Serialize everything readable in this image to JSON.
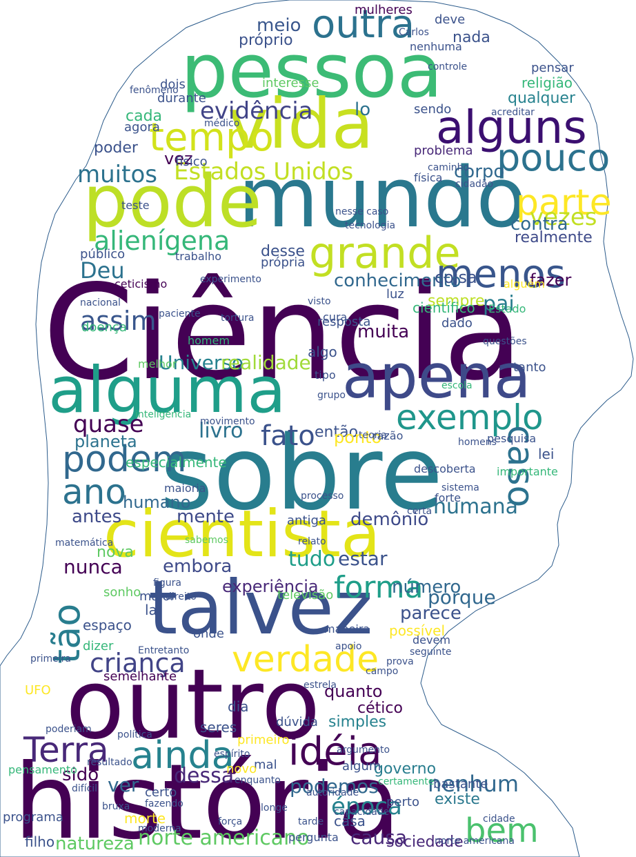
{
  "words": [
    {
      "id": "ciencia",
      "text": "Ciência",
      "color": "#440154"
    },
    {
      "id": "sobre",
      "text": "sobre",
      "color": "#287d8e"
    },
    {
      "id": "historia",
      "text": "história",
      "color": "#440154"
    },
    {
      "id": "outro",
      "text": "outro",
      "color": "#440154"
    },
    {
      "id": "pessoa",
      "text": "pessoa",
      "color": "#3cbb75"
    },
    {
      "id": "mundo",
      "text": "mundo",
      "color": "#2a788e"
    },
    {
      "id": "pode",
      "text": "pode",
      "color": "#bddf26"
    },
    {
      "id": "vida",
      "text": "vida",
      "color": "#c8e020"
    },
    {
      "id": "talvez",
      "text": "talvez",
      "color": "#3b528b"
    },
    {
      "id": "cientista",
      "text": "cientista",
      "color": "#e3e418"
    },
    {
      "id": "alguma",
      "text": "alguma",
      "color": "#1f9e89"
    },
    {
      "id": "apena",
      "text": "apena",
      "color": "#3e4a89"
    },
    {
      "id": "exemplo",
      "text": "exemplo",
      "color": "#1f968b"
    },
    {
      "id": "alguns",
      "text": "alguns",
      "color": "#3b0f70"
    },
    {
      "id": "tempo",
      "text": "tempo",
      "color": "#d2e21b"
    },
    {
      "id": "grande",
      "text": "grande",
      "color": "#c2df23"
    },
    {
      "id": "menos",
      "text": "menos",
      "color": "#39568c"
    },
    {
      "id": "pouco",
      "text": "pouco",
      "color": "#2c728e"
    },
    {
      "id": "outra",
      "text": "outra",
      "color": "#2c728e"
    },
    {
      "id": "parte",
      "text": "parte",
      "color": "#fde725"
    },
    {
      "id": "vezes",
      "text": "vezes",
      "color": "#c2df23"
    },
    {
      "id": "estados-unidos",
      "text": "Estados Unidos",
      "color": "#c2df23"
    },
    {
      "id": "muitos",
      "text": "muitos",
      "color": "#2c728e"
    },
    {
      "id": "evidencia",
      "text": "evidência",
      "color": "#414487"
    },
    {
      "id": "alienigena",
      "text": "alienígena",
      "color": "#35b779"
    },
    {
      "id": "verdade",
      "text": "verdade",
      "color": "#fde725"
    },
    {
      "id": "podem",
      "text": "podem",
      "color": "#31688e"
    },
    {
      "id": "ano",
      "text": "ano",
      "color": "#2c728e"
    },
    {
      "id": "fato",
      "text": "fato",
      "color": "#3b528b"
    },
    {
      "id": "caso",
      "text": "caso",
      "color": "#2c728e"
    },
    {
      "id": "forma",
      "text": "forma",
      "color": "#1f9e89"
    },
    {
      "id": "crianca",
      "text": "criança",
      "color": "#414487"
    },
    {
      "id": "terra",
      "text": "Terra",
      "color": "#482878"
    },
    {
      "id": "ainda",
      "text": "ainda",
      "color": "#26828e"
    },
    {
      "id": "ideia",
      "text": "idéia",
      "color": "#440154"
    },
    {
      "id": "bem",
      "text": "bem",
      "color": "#4ac16d"
    },
    {
      "id": "tao",
      "text": "tão",
      "color": "#287d8e"
    },
    {
      "id": "deu",
      "text": "Deu",
      "color": "#2c728e"
    },
    {
      "id": "assim",
      "text": "assim",
      "color": "#39568c"
    },
    {
      "id": "quase",
      "text": "quase",
      "color": "#440154"
    },
    {
      "id": "conhecimento",
      "text": "conhecimento",
      "color": "#31688e"
    },
    {
      "id": "humana",
      "text": "humana",
      "color": "#2c728e"
    },
    {
      "id": "nenhum",
      "text": "nenhum",
      "color": "#31688e"
    },
    {
      "id": "podemos",
      "text": "podemos",
      "color": "#31688e"
    },
    {
      "id": "epoca",
      "text": "época",
      "color": "#26828e"
    },
    {
      "id": "norte-americano",
      "text": "norte americano",
      "color": "#5ec962"
    },
    {
      "id": "natureza",
      "text": "natureza",
      "color": "#5ec962"
    },
    {
      "id": "sido",
      "text": "sido",
      "color": "#440154"
    },
    {
      "id": "dessa",
      "text": "dessa",
      "color": "#482878"
    },
    {
      "id": "ver",
      "text": "ver",
      "color": "#31688e"
    },
    {
      "id": "causa",
      "text": "causa",
      "color": "#482878"
    },
    {
      "id": "existe",
      "text": "existe",
      "color": "#2a788e"
    },
    {
      "id": "sociedade",
      "text": "sociedade",
      "color": "#482878"
    },
    {
      "id": "livro",
      "text": "livro",
      "color": "#2c728e"
    },
    {
      "id": "universo",
      "text": "Universo",
      "color": "#26828e"
    },
    {
      "id": "realidade",
      "text": "realidade",
      "color": "#a0da39"
    },
    {
      "id": "planeta",
      "text": "planeta",
      "color": "#2c728e"
    },
    {
      "id": "nunca",
      "text": "nunca",
      "color": "#440154"
    },
    {
      "id": "embora",
      "text": "embora",
      "color": "#3e4a89"
    },
    {
      "id": "tudo",
      "text": "tudo",
      "color": "#1f9e89"
    },
    {
      "id": "numero",
      "text": "número",
      "color": "#31688e"
    },
    {
      "id": "porque",
      "text": "porque",
      "color": "#31688e"
    },
    {
      "id": "parece",
      "text": "parece",
      "color": "#3b528b"
    },
    {
      "id": "experiencia",
      "text": "experiência",
      "color": "#482878"
    },
    {
      "id": "corpo",
      "text": "corpo",
      "color": "#31688e"
    },
    {
      "id": "contra",
      "text": "contra",
      "color": "#31688e"
    },
    {
      "id": "realmente",
      "text": "realmente",
      "color": "#3e4a89"
    },
    {
      "id": "coisa",
      "text": "coisa",
      "color": "#3b528b"
    },
    {
      "id": "fazer",
      "text": "fazer",
      "color": "#440154"
    },
    {
      "id": "pai",
      "text": "pai",
      "color": "#287d8e"
    },
    {
      "id": "sempre",
      "text": "sempre",
      "color": "#bddf26"
    },
    {
      "id": "muita",
      "text": "muita",
      "color": "#440154"
    },
    {
      "id": "estar",
      "text": "estar",
      "color": "#3b528b"
    },
    {
      "id": "demonio",
      "text": "demônio",
      "color": "#3e4a89"
    },
    {
      "id": "mente",
      "text": "mente",
      "color": "#3e4a89"
    },
    {
      "id": "humano",
      "text": "humano",
      "color": "#31688e"
    },
    {
      "id": "antes",
      "text": "antes",
      "color": "#3e4a89"
    },
    {
      "id": "nova",
      "text": "nova",
      "color": "#5ec962"
    },
    {
      "id": "entao",
      "text": "então",
      "color": "#3b528b"
    },
    {
      "id": "quanto",
      "text": "quanto",
      "color": "#440154"
    },
    {
      "id": "cetico",
      "text": "cético",
      "color": "#440154"
    },
    {
      "id": "simples",
      "text": "simples",
      "color": "#26828e"
    },
    {
      "id": "governo",
      "text": "governo",
      "color": "#287d8e"
    },
    {
      "id": "meio",
      "text": "meio",
      "color": "#39568c"
    },
    {
      "id": "mulheres",
      "text": "mulheres",
      "color": "#440154"
    },
    {
      "id": "cada",
      "text": "cada",
      "color": "#35b779"
    },
    {
      "id": "poder",
      "text": "poder",
      "color": "#3b528b"
    },
    {
      "id": "vez",
      "text": "vez",
      "color": "#440154"
    },
    {
      "id": "qualquer",
      "text": "qualquer",
      "color": "#26828e"
    },
    {
      "id": "lo",
      "text": "lo",
      "color": "#2c728e"
    },
    {
      "id": "proprio",
      "text": "próprio",
      "color": "#3b528b"
    },
    {
      "id": "nada",
      "text": "nada",
      "color": "#3b528b"
    },
    {
      "id": "deve",
      "text": "deve",
      "color": "#3b528b"
    },
    {
      "id": "nenhuma",
      "text": "nenhuma",
      "color": "#3b528b"
    },
    {
      "id": "religiao",
      "text": "religião",
      "color": "#35b779"
    },
    {
      "id": "pensar",
      "text": "pensar",
      "color": "#3b528b"
    },
    {
      "id": "interesse",
      "text": "interesse",
      "color": "#5ec962"
    },
    {
      "id": "dois",
      "text": "dois",
      "color": "#3b528b"
    },
    {
      "id": "durante",
      "text": "durante",
      "color": "#3b528b"
    },
    {
      "id": "agora",
      "text": "agora",
      "color": "#3b528b"
    },
    {
      "id": "fisica",
      "text": "física",
      "color": "#3b528b"
    },
    {
      "id": "fisico",
      "text": "físico",
      "color": "#3b528b"
    },
    {
      "id": "problema",
      "text": "problema",
      "color": "#482878"
    },
    {
      "id": "sendo",
      "text": "sendo",
      "color": "#3b528b"
    },
    {
      "id": "teste",
      "text": "teste",
      "color": "#3b528b"
    },
    {
      "id": "cientifico",
      "text": "científico",
      "color": "#35b779"
    },
    {
      "id": "dado",
      "text": "dado",
      "color": "#3b528b"
    },
    {
      "id": "doenca",
      "text": "doença",
      "color": "#35b779"
    },
    {
      "id": "desse",
      "text": "desse",
      "color": "#3b528b"
    },
    {
      "id": "propria",
      "text": "própria",
      "color": "#3b528b"
    },
    {
      "id": "publico",
      "text": "público",
      "color": "#3b528b"
    },
    {
      "id": "ceticismo",
      "text": "ceticismo",
      "color": "#440154"
    },
    {
      "id": "trabalho",
      "text": "trabalho",
      "color": "#3b528b"
    },
    {
      "id": "resposta",
      "text": "resposta",
      "color": "#3b528b"
    },
    {
      "id": "algo",
      "text": "algo",
      "color": "#3b528b"
    },
    {
      "id": "espaco",
      "text": "espaço",
      "color": "#3b528b"
    },
    {
      "id": "dizer",
      "text": "dizer",
      "color": "#35b779"
    },
    {
      "id": "semelhante",
      "text": "semelhante",
      "color": "#440154"
    },
    {
      "id": "ufo",
      "text": "UFO",
      "color": "#fde725"
    },
    {
      "id": "primeiro",
      "text": "primeiro",
      "color": "#fde725"
    },
    {
      "id": "programa",
      "text": "programa",
      "color": "#3b528b"
    },
    {
      "id": "pensamento",
      "text": "pensamento",
      "color": "#35b779"
    },
    {
      "id": "morte",
      "text": "morte",
      "color": "#fde725"
    },
    {
      "id": "bastante",
      "text": "bastante",
      "color": "#3b528b"
    },
    {
      "id": "especialmente",
      "text": "especialmente",
      "color": "#35b779"
    },
    {
      "id": "ponto",
      "text": "ponto",
      "color": "#fde725"
    },
    {
      "id": "descoberta",
      "text": "descoberta",
      "color": "#3b528b"
    },
    {
      "id": "importante",
      "text": "importante",
      "color": "#35b779"
    },
    {
      "id": "tanto",
      "text": "tanto",
      "color": "#3b528b"
    },
    {
      "id": "estado",
      "text": "Estado",
      "color": "#35b779"
    },
    {
      "id": "alguem",
      "text": "alguém",
      "color": "#fde725"
    },
    {
      "id": "possivel",
      "text": "possível",
      "color": "#fde725"
    },
    {
      "id": "televisao",
      "text": "televisão",
      "color": "#5ec962"
    },
    {
      "id": "sonho",
      "text": "sonho",
      "color": "#5ec962"
    },
    {
      "id": "dia",
      "text": "dia",
      "color": "#3b528b"
    },
    {
      "id": "seres",
      "text": "seres",
      "color": "#3b528b"
    },
    {
      "id": "duvida",
      "text": "dúvida",
      "color": "#3b528b"
    },
    {
      "id": "certo",
      "text": "certo",
      "color": "#3b528b"
    },
    {
      "id": "mal",
      "text": "mal",
      "color": "#3b528b"
    },
    {
      "id": "novo",
      "text": "novo",
      "color": "#fde725"
    },
    {
      "id": "algum",
      "text": "algum",
      "color": "#3b528b"
    },
    {
      "id": "certamente",
      "text": "certamente",
      "color": "#35b779"
    },
    {
      "id": "perto",
      "text": "perto",
      "color": "#3b528b"
    },
    {
      "id": "casa",
      "text": "casa",
      "color": "#3b528b"
    },
    {
      "id": "filho",
      "text": "filho",
      "color": "#3b528b"
    },
    {
      "id": "lei",
      "text": "lei",
      "color": "#3b528b"
    },
    {
      "id": "pesquisa",
      "text": "pesquisa",
      "color": "#3b528b"
    },
    {
      "id": "onde",
      "text": "onde",
      "color": "#3b528b"
    },
    {
      "id": "la",
      "text": "la",
      "color": "#3b528b"
    },
    {
      "id": "maior",
      "text": "maior",
      "color": "#3b528b"
    },
    {
      "id": "antiga",
      "text": "antiga",
      "color": "#3b528b"
    },
    {
      "id": "devem",
      "text": "devem",
      "color": "#3b528b"
    },
    {
      "id": "prova",
      "text": "prova",
      "color": "#3b528b"
    },
    {
      "id": "inteligencia",
      "text": "inteligência",
      "color": "#35b779"
    },
    {
      "id": "nesse-caso",
      "text": "nesse caso",
      "color": "#3b528b"
    },
    {
      "id": "melhor",
      "text": "melhor",
      "color": "#5ec962"
    },
    {
      "id": "luz",
      "text": "luz",
      "color": "#3b528b"
    },
    {
      "id": "cura",
      "text": "cura",
      "color": "#3b528b"
    },
    {
      "id": "razao",
      "text": "razão",
      "color": "#3b528b"
    },
    {
      "id": "paciente",
      "text": "paciente",
      "color": "#3b528b"
    },
    {
      "id": "fenomeno",
      "text": "fenômeno",
      "color": "#3b528b"
    },
    {
      "id": "medico",
      "text": "médico",
      "color": "#3b528b"
    },
    {
      "id": "caminho",
      "text": "caminho",
      "color": "#3b528b"
    },
    {
      "id": "carlos",
      "text": "Carlos",
      "color": "#3b528b"
    },
    {
      "id": "controle",
      "text": "controle",
      "color": "#3b528b"
    },
    {
      "id": "acreditar",
      "text": "acreditar",
      "color": "#3b528b"
    },
    {
      "id": "tecnologia",
      "text": "tecnologia",
      "color": "#3b528b"
    },
    {
      "id": "cidadao",
      "text": "cidadão",
      "color": "#3b528b"
    },
    {
      "id": "homem",
      "text": "homem",
      "color": "#35b779"
    },
    {
      "id": "experimento",
      "text": "experimento",
      "color": "#3b528b"
    },
    {
      "id": "nacional",
      "text": "nacional",
      "color": "#3b528b"
    },
    {
      "id": "tortura",
      "text": "tortura",
      "color": "#3b528b"
    },
    {
      "id": "visto",
      "text": "visto",
      "color": "#3b528b"
    },
    {
      "id": "tipo",
      "text": "tipo",
      "color": "#3b528b"
    },
    {
      "id": "grupo",
      "text": "grupo",
      "color": "#3b528b"
    },
    {
      "id": "teoria",
      "text": "teoria",
      "color": "#3b528b"
    },
    {
      "id": "escola",
      "text": "escola",
      "color": "#35b779"
    },
    {
      "id": "movimento",
      "text": "movimento",
      "color": "#3b528b"
    },
    {
      "id": "homens",
      "text": "homens",
      "color": "#3b528b"
    },
    {
      "id": "sistema",
      "text": "sistema",
      "color": "#3b528b"
    },
    {
      "id": "forte",
      "text": "forte",
      "color": "#3b528b"
    },
    {
      "id": "certa",
      "text": "certa",
      "color": "#3b528b"
    },
    {
      "id": "processo",
      "text": "processo",
      "color": "#3b528b"
    },
    {
      "id": "maioria",
      "text": "maioria",
      "color": "#3b528b"
    },
    {
      "id": "questoes",
      "text": "questões",
      "color": "#3b528b"
    },
    {
      "id": "matematica",
      "text": "matemática",
      "color": "#3b528b"
    },
    {
      "id": "relato",
      "text": "relato",
      "color": "#3b528b"
    },
    {
      "id": "sabemos",
      "text": "sabemos",
      "color": "#5ec962"
    },
    {
      "id": "figura",
      "text": "figura",
      "color": "#3b528b"
    },
    {
      "id": "direito",
      "text": "direito",
      "color": "#3b528b"
    },
    {
      "id": "maneira",
      "text": "maneira",
      "color": "#3b528b"
    },
    {
      "id": "entretanto",
      "text": "Entretanto",
      "color": "#3b528b"
    },
    {
      "id": "estrela",
      "text": "estrela",
      "color": "#3b528b"
    },
    {
      "id": "campo",
      "text": "campo",
      "color": "#3b528b"
    },
    {
      "id": "apoio",
      "text": "apoio",
      "color": "#3b528b"
    },
    {
      "id": "primeira",
      "text": "primeira",
      "color": "#3b528b"
    },
    {
      "id": "politica",
      "text": "política",
      "color": "#3b528b"
    },
    {
      "id": "poderiam",
      "text": "poderiam",
      "color": "#3b528b"
    },
    {
      "id": "resultado",
      "text": "resultado",
      "color": "#3b528b"
    },
    {
      "id": "espirito",
      "text": "espírito",
      "color": "#3b528b"
    },
    {
      "id": "enquanto",
      "text": "enquanto",
      "color": "#3b528b"
    },
    {
      "id": "fazendo",
      "text": "fazendo",
      "color": "#3b528b"
    },
    {
      "id": "bruxa",
      "text": "bruxa",
      "color": "#3b528b"
    },
    {
      "id": "dificil",
      "text": "difícil",
      "color": "#3b528b"
    },
    {
      "id": "moderna",
      "text": "moderna",
      "color": "#3b528b"
    },
    {
      "id": "forca",
      "text": "força",
      "color": "#3b528b"
    },
    {
      "id": "pergunta",
      "text": "pergunta",
      "color": "#3b528b"
    },
    {
      "id": "tarde",
      "text": "tarde",
      "color": "#3b528b"
    },
    {
      "id": "autoridade",
      "text": "autoridade",
      "color": "#3b528b"
    },
    {
      "id": "argumento",
      "text": "argumento",
      "color": "#3b528b"
    },
    {
      "id": "longe",
      "text": "longe",
      "color": "#3b528b"
    },
    {
      "id": "seguinte",
      "text": "seguinte",
      "color": "#3b528b"
    },
    {
      "id": "cidade",
      "text": "cidade",
      "color": "#3b528b"
    },
    {
      "id": "capacidade",
      "text": "capacidade",
      "color": "#3b528b"
    },
    {
      "id": "norte-americana",
      "text": "norte americana",
      "color": "#3b528b"
    }
  ],
  "colors": {
    "background": "#ffffff",
    "silhouette_stroke": "#2a5a8a"
  }
}
